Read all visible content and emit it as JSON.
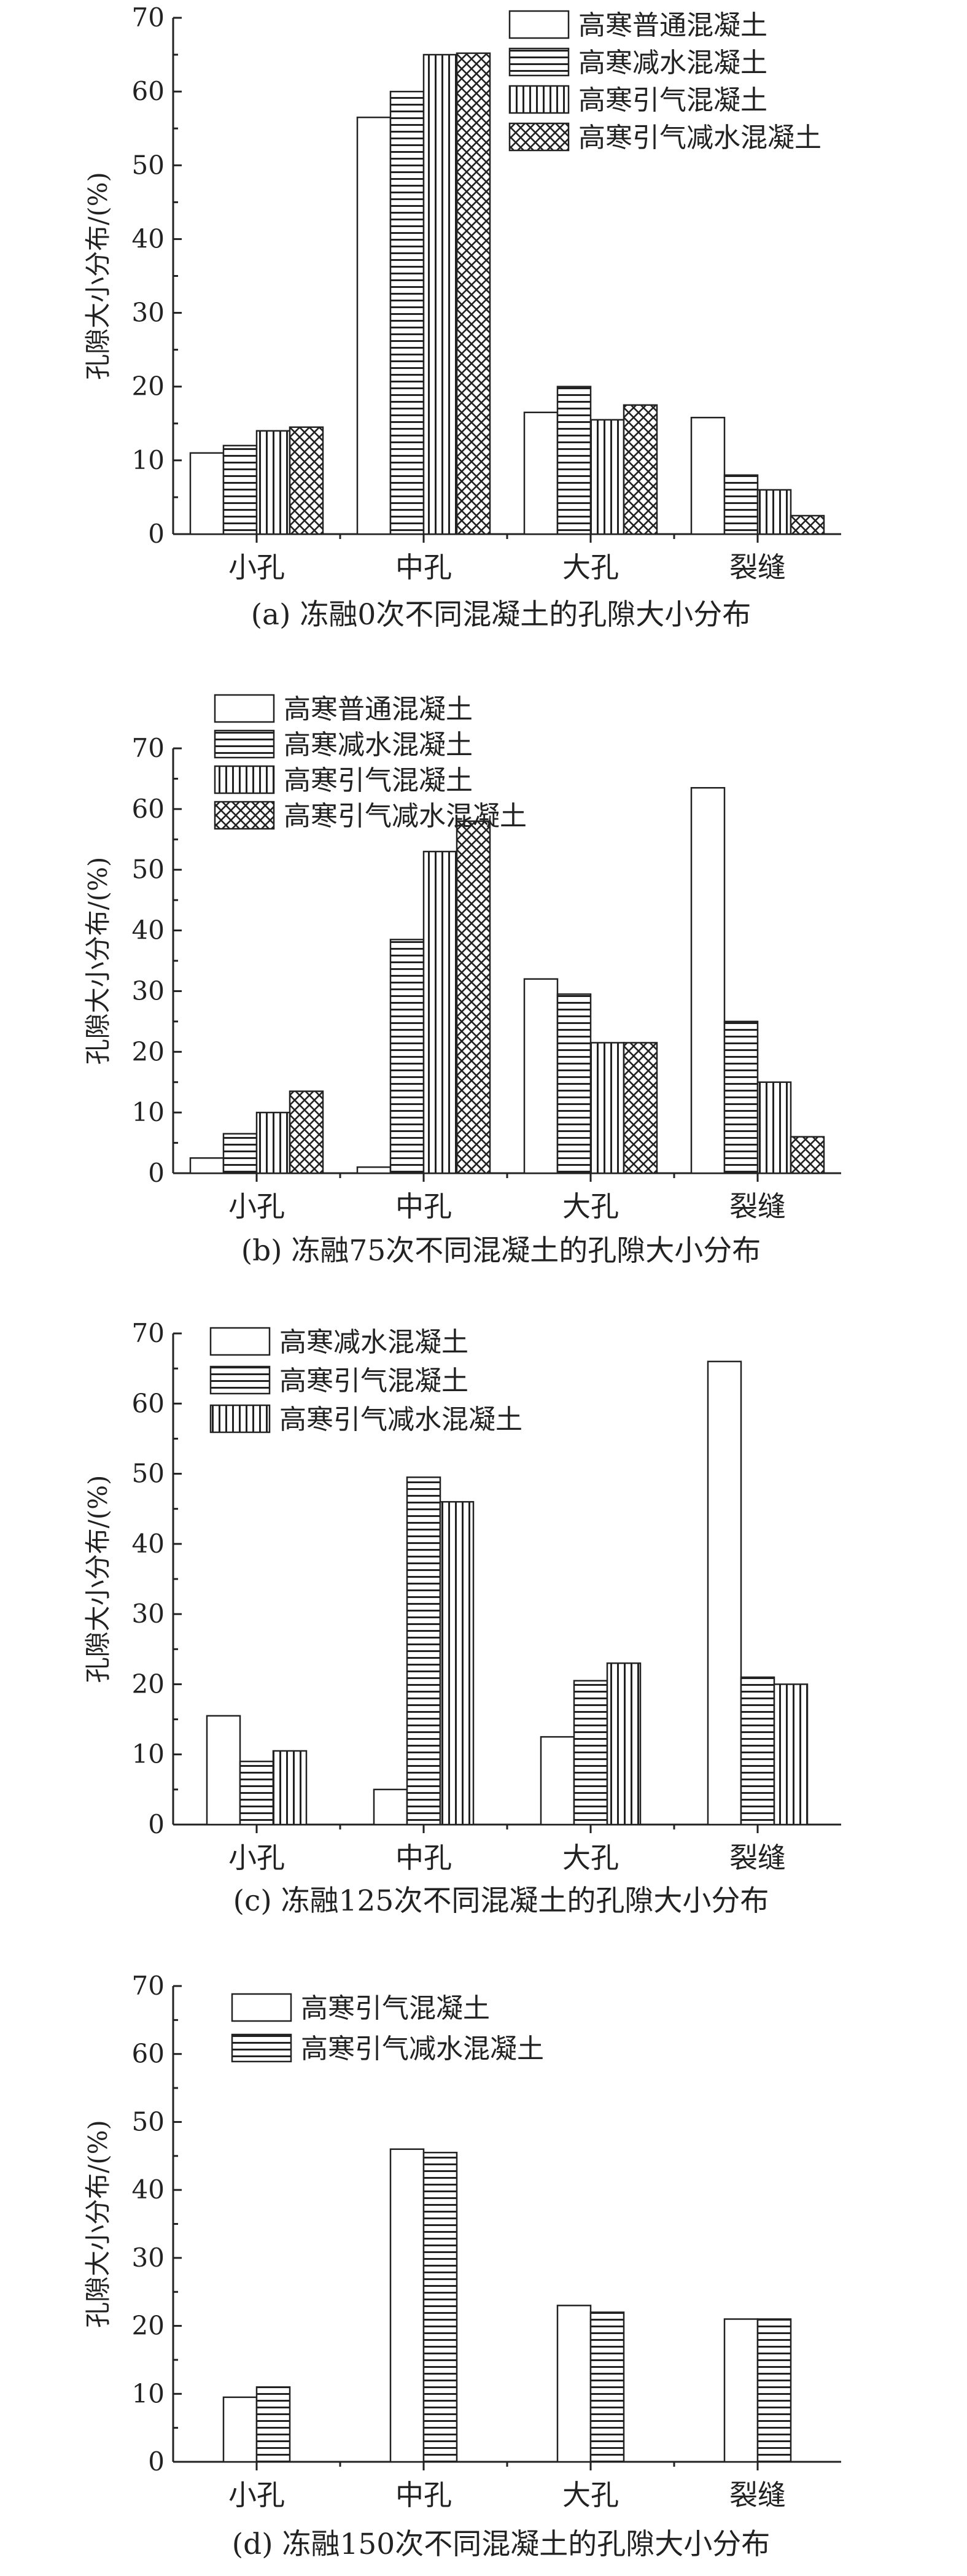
{
  "chart_data": [
    {
      "type": "bar",
      "title": "(a) 冻融0次不同混凝土的孔隙大小分布",
      "xlabel": "",
      "ylabel": "孔隙大小分布/(%)",
      "ylim": [
        0,
        70
      ],
      "yticks": [
        "0",
        "10",
        "20",
        "30",
        "40",
        "50",
        "60",
        "70"
      ],
      "categories": [
        "小孔",
        "中孔",
        "大孔",
        "裂缝"
      ],
      "legend_position": "top-right",
      "series": [
        {
          "name": "高寒普通混凝土",
          "pattern": "blank",
          "values": [
            11,
            56.5,
            16.5,
            15.8
          ]
        },
        {
          "name": "高寒减水混凝土",
          "pattern": "horizontal",
          "values": [
            12,
            60,
            20,
            8
          ]
        },
        {
          "name": "高寒引气混凝土",
          "pattern": "vertical",
          "values": [
            14,
            65,
            15.5,
            6
          ]
        },
        {
          "name": "高寒引气减水混凝土",
          "pattern": "crosshatch",
          "values": [
            14.5,
            65.2,
            17.5,
            2.5
          ]
        }
      ]
    },
    {
      "type": "bar",
      "title": "(b) 冻融75次不同混凝土的孔隙大小分布",
      "xlabel": "",
      "ylabel": "孔隙大小分布/(%)",
      "ylim": [
        0,
        70
      ],
      "yticks": [
        "0",
        "10",
        "20",
        "30",
        "40",
        "50",
        "60",
        "70"
      ],
      "categories": [
        "小孔",
        "中孔",
        "大孔",
        "裂缝"
      ],
      "legend_position": "top-left",
      "series": [
        {
          "name": "高寒普通混凝土",
          "pattern": "blank",
          "values": [
            2.5,
            1,
            32,
            63.5
          ]
        },
        {
          "name": "高寒减水混凝土",
          "pattern": "horizontal",
          "values": [
            6.5,
            38.5,
            29.5,
            25
          ]
        },
        {
          "name": "高寒引气混凝土",
          "pattern": "vertical",
          "values": [
            10,
            53,
            21.5,
            15
          ]
        },
        {
          "name": "高寒引气减水混凝土",
          "pattern": "crosshatch",
          "values": [
            13.5,
            58,
            21.5,
            6
          ]
        }
      ]
    },
    {
      "type": "bar",
      "title": "(c) 冻融125次不同混凝土的孔隙大小分布",
      "xlabel": "",
      "ylabel": "孔隙大小分布/(%)",
      "ylim": [
        0,
        70
      ],
      "yticks": [
        "0",
        "10",
        "20",
        "30",
        "40",
        "50",
        "60",
        "70"
      ],
      "categories": [
        "小孔",
        "中孔",
        "大孔",
        "裂缝"
      ],
      "legend_position": "top-left",
      "series": [
        {
          "name": "高寒减水混凝土",
          "pattern": "blank",
          "values": [
            15.5,
            5,
            12.5,
            66
          ]
        },
        {
          "name": "高寒引气混凝土",
          "pattern": "horizontal",
          "values": [
            9,
            49.5,
            20.5,
            21
          ]
        },
        {
          "name": "高寒引气减水混凝土",
          "pattern": "vertical",
          "values": [
            10.5,
            46,
            23,
            20
          ]
        }
      ]
    },
    {
      "type": "bar",
      "title": "(d) 冻融150次不同混凝土的孔隙大小分布",
      "xlabel": "",
      "ylabel": "孔隙大小分布/(%)",
      "ylim": [
        0,
        70
      ],
      "yticks": [
        "0",
        "10",
        "20",
        "30",
        "40",
        "50",
        "60",
        "70"
      ],
      "categories": [
        "小孔",
        "中孔",
        "大孔",
        "裂缝"
      ],
      "legend_position": "top-left",
      "series": [
        {
          "name": "高寒引气混凝土",
          "pattern": "blank",
          "values": [
            9.5,
            46,
            23,
            21
          ]
        },
        {
          "name": "高寒引气减水混凝土",
          "pattern": "horizontal",
          "values": [
            11,
            45.5,
            22,
            21
          ]
        }
      ]
    }
  ]
}
